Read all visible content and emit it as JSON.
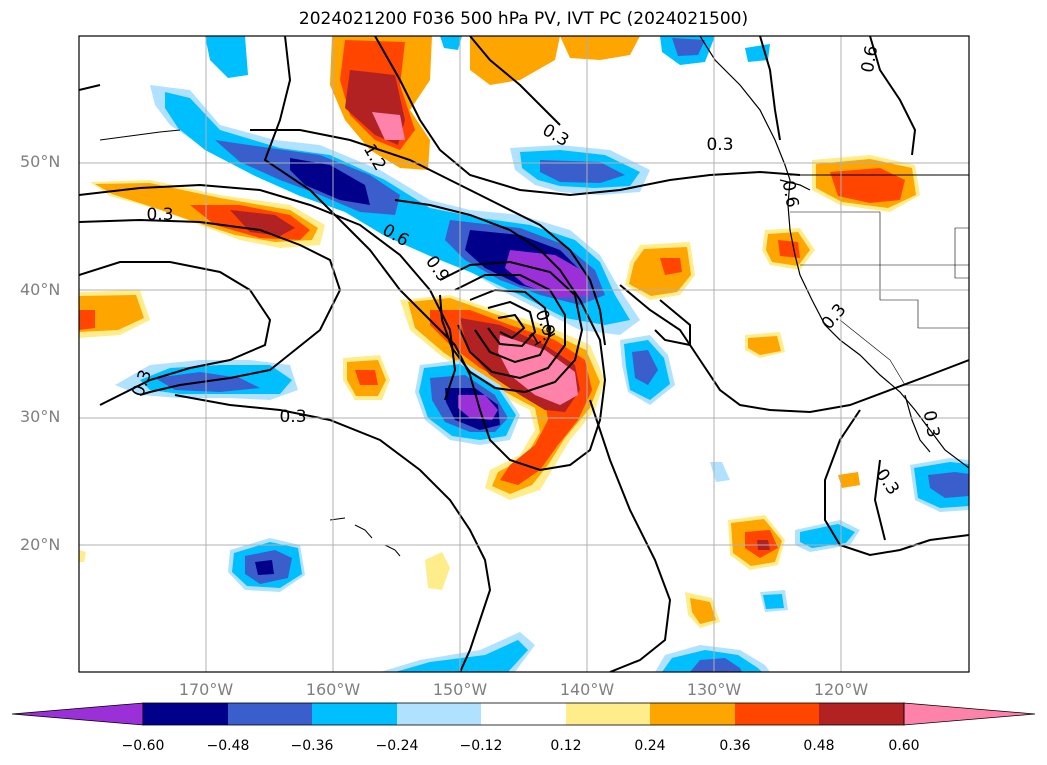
{
  "title": "2024021200 F036 500 hPa PV, IVT PC (2024021500)",
  "map": {
    "lat_labels": [
      "50°N",
      "40°N",
      "30°N",
      "20°N"
    ],
    "lon_labels": [
      "170°W",
      "160°W",
      "150°W",
      "140°W",
      "130°W",
      "120°W"
    ]
  },
  "contour_labels": [
    "0.3",
    "0.3",
    "0.3",
    "0.3",
    "0.3",
    "0.3",
    "0.3",
    "0.6",
    "0.6",
    "0.9",
    "0.9",
    "1.2",
    "1.2",
    "0.6",
    "0.3"
  ],
  "colorbar": {
    "colors": [
      "#9b30d9",
      "#00008b",
      "#3a5fcd",
      "#00bfff",
      "#b0e2ff",
      "#ffffff",
      "#ffec8b",
      "#ffa500",
      "#ff4500",
      "#b22222",
      "#ff82ab"
    ],
    "tick_labels": [
      "−0.60",
      "−0.48",
      "−0.36",
      "−0.24",
      "−0.12",
      "0.12",
      "0.24",
      "0.36",
      "0.48",
      "0.60"
    ]
  }
}
